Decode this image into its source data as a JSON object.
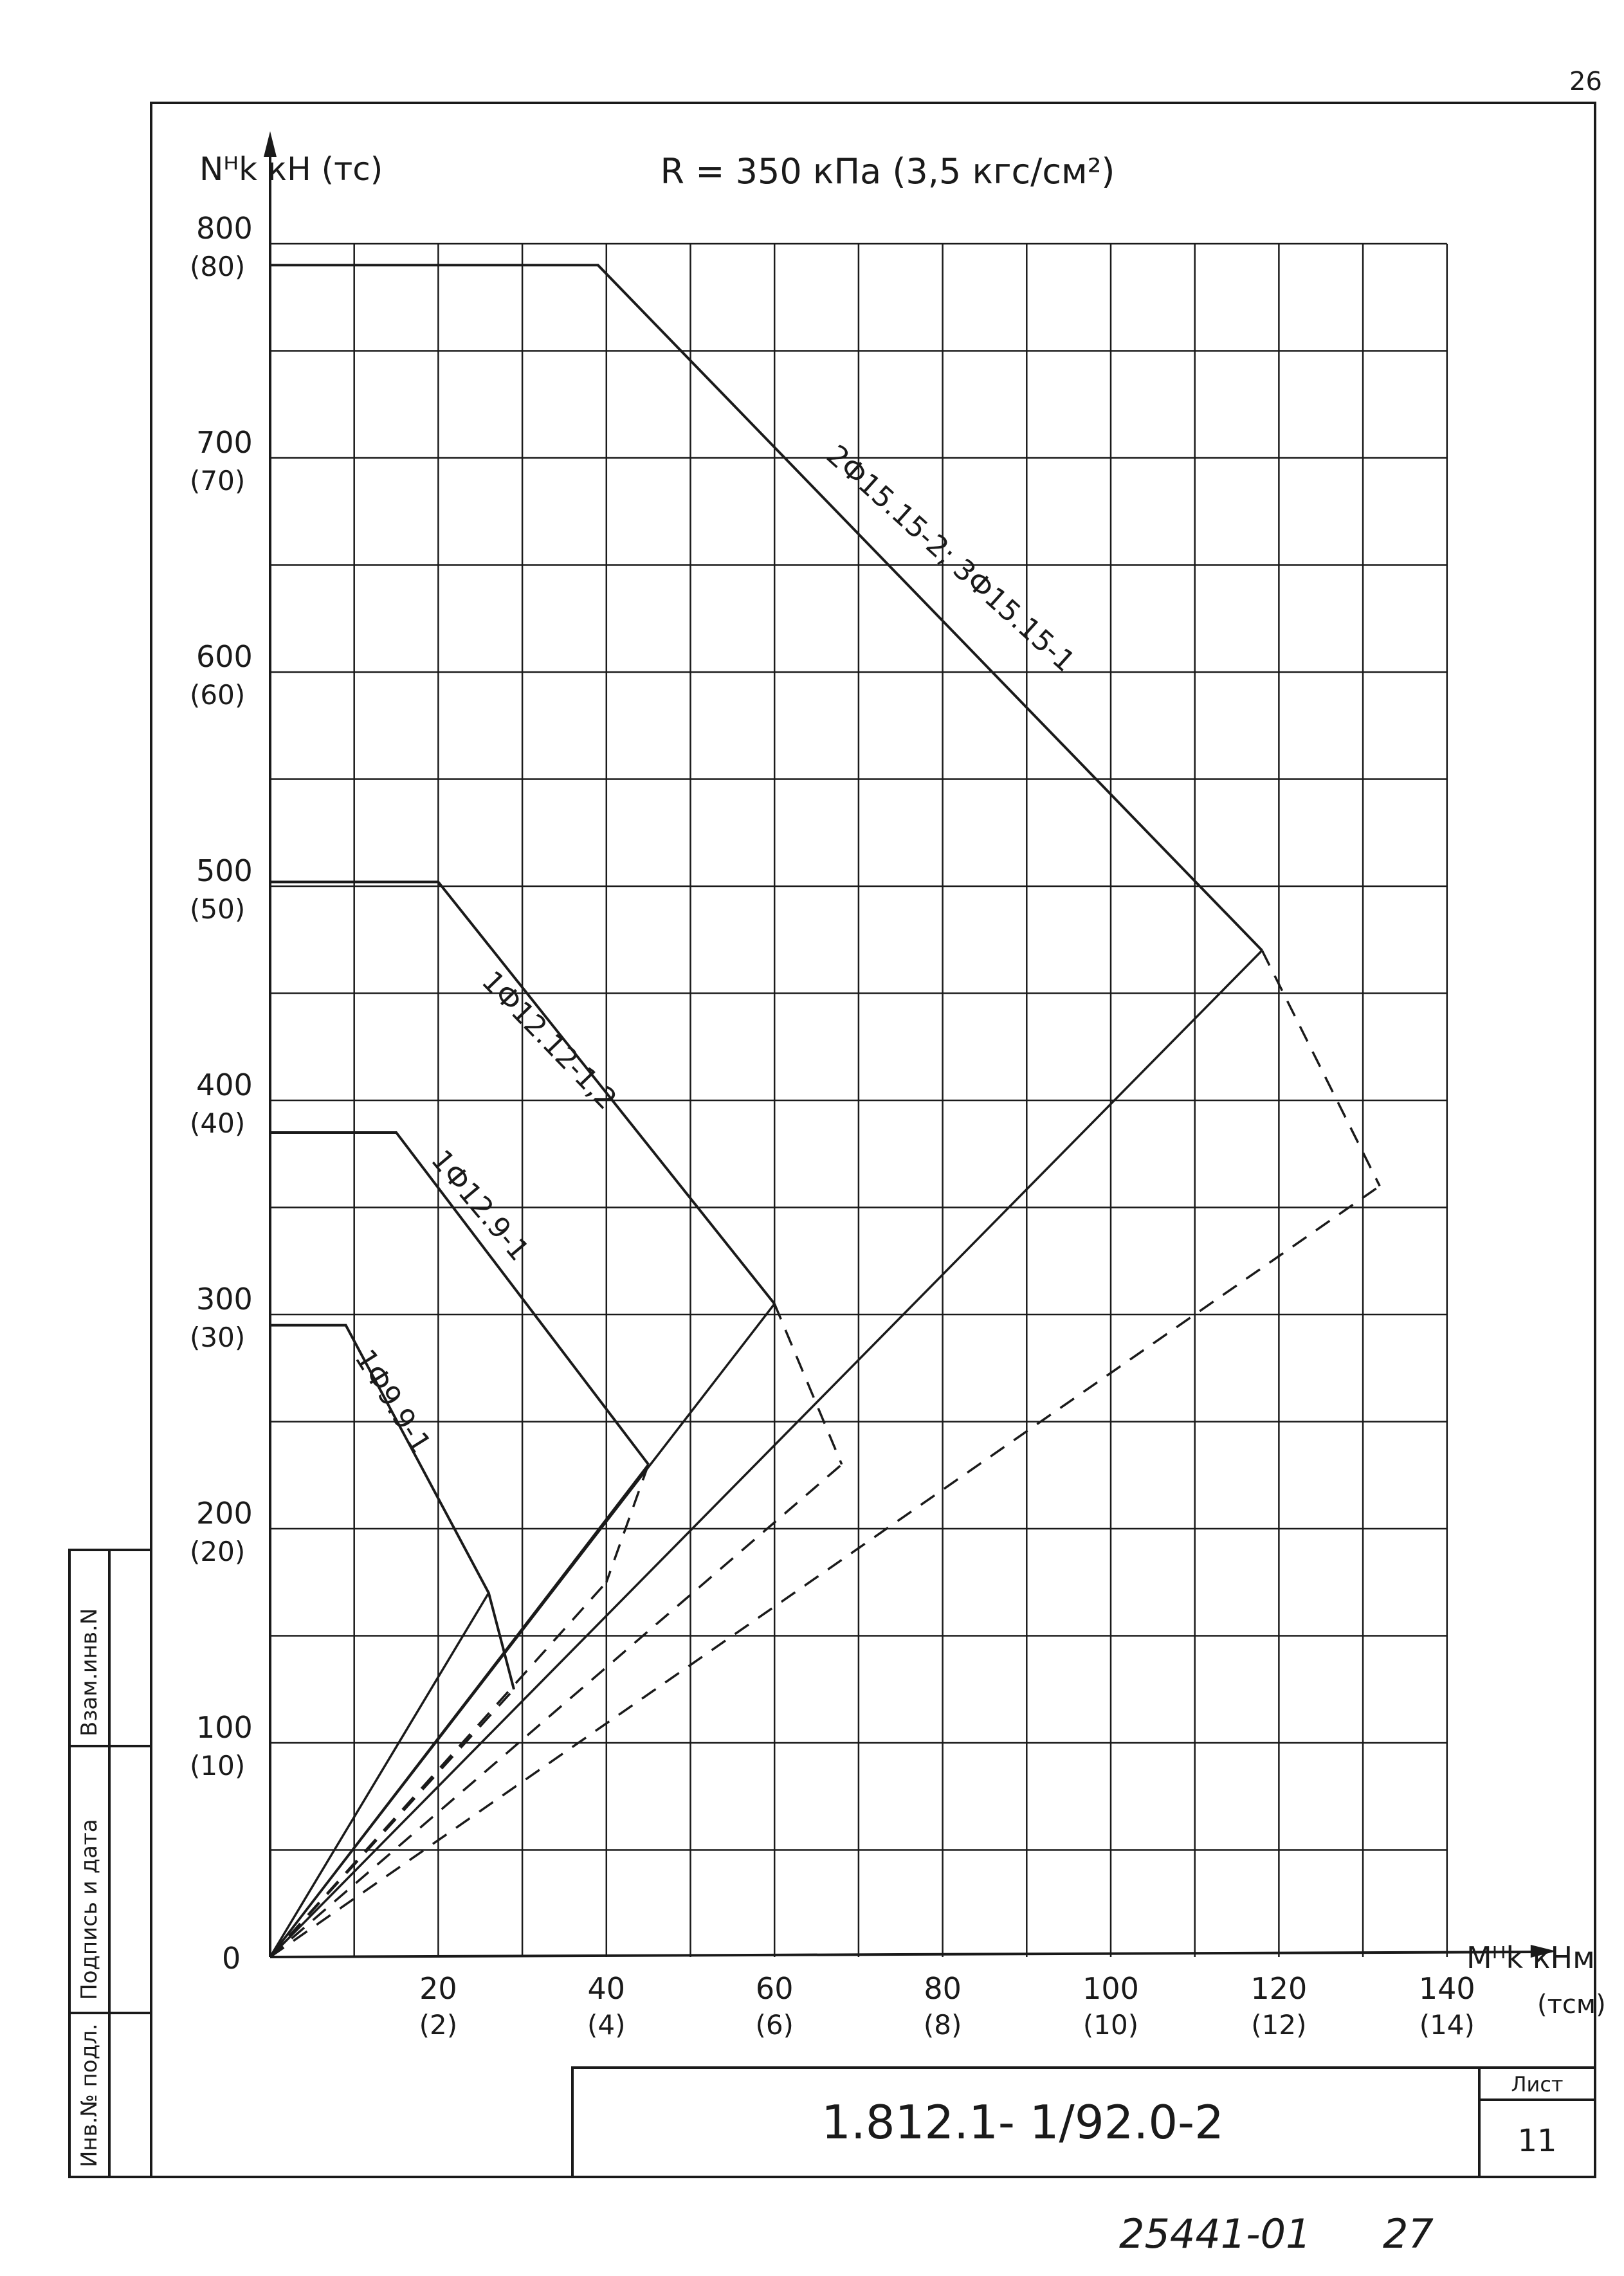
{
  "page_number": "26",
  "chart_data": {
    "type": "line",
    "title": "R = 350 кПа (3,5 кгс/см²)",
    "ylabel": "Nᴴk кН (тс)",
    "xlabel": "Mᴴk кНм",
    "x_unit_alt": "(тсм)",
    "xlim": [
      0,
      140
    ],
    "ylim": [
      0,
      800
    ],
    "grid": true,
    "x_ticks": [
      {
        "value": 20,
        "label": "20",
        "alt": "(2)"
      },
      {
        "value": 40,
        "label": "40",
        "alt": "(4)"
      },
      {
        "value": 60,
        "label": "60",
        "alt": "(6)"
      },
      {
        "value": 80,
        "label": "80",
        "alt": "(8)"
      },
      {
        "value": 100,
        "label": "100",
        "alt": "(10)"
      },
      {
        "value": 120,
        "label": "120",
        "alt": "(12)"
      },
      {
        "value": 140,
        "label": "140",
        "alt": "(14)"
      }
    ],
    "y_ticks": [
      {
        "value": 0,
        "label": "0",
        "alt": ""
      },
      {
        "value": 100,
        "label": "100",
        "alt": "(10)"
      },
      {
        "value": 200,
        "label": "200",
        "alt": "(20)"
      },
      {
        "value": 300,
        "label": "300",
        "alt": "(30)"
      },
      {
        "value": 400,
        "label": "400",
        "alt": "(40)"
      },
      {
        "value": 500,
        "label": "500",
        "alt": "(50)"
      },
      {
        "value": 600,
        "label": "600",
        "alt": "(60)"
      },
      {
        "value": 700,
        "label": "700",
        "alt": "(70)"
      },
      {
        "value": 800,
        "label": "800",
        "alt": "(80)"
      }
    ],
    "series": [
      {
        "name": "1Ф9.9-1",
        "style": "solid",
        "x": [
          0,
          9,
          26,
          29
        ],
        "y": [
          295,
          295,
          170,
          125
        ]
      },
      {
        "name": "1Ф12.9-1",
        "style": "solid",
        "x": [
          0,
          15,
          45,
          45
        ],
        "y": [
          385,
          385,
          230,
          230
        ]
      },
      {
        "name": "1Ф12.12-1,2",
        "style": "solid",
        "x": [
          0,
          20,
          60
        ],
        "y": [
          502,
          502,
          305
        ]
      },
      {
        "name": "2Ф15.15-2; 3Ф15.15-1",
        "style": "solid",
        "x": [
          0,
          39,
          118
        ],
        "y": [
          790,
          790,
          470
        ]
      }
    ],
    "dashed_segments": [
      {
        "x": [
          26,
          29
        ],
        "y": [
          170,
          125
        ]
      },
      {
        "x": [
          45,
          40
        ],
        "y": [
          230,
          175
        ]
      },
      {
        "x": [
          60,
          68
        ],
        "y": [
          305,
          230
        ]
      },
      {
        "x": [
          118,
          132
        ],
        "y": [
          470,
          360
        ]
      }
    ],
    "rays_solid": [
      {
        "x": [
          0,
          26
        ],
        "y": [
          0,
          170
        ]
      },
      {
        "x": [
          0,
          45
        ],
        "y": [
          0,
          230
        ]
      },
      {
        "x": [
          0,
          60
        ],
        "y": [
          0,
          305
        ]
      },
      {
        "x": [
          0,
          118
        ],
        "y": [
          0,
          470
        ]
      }
    ],
    "rays_dashed": [
      {
        "x": [
          0,
          29
        ],
        "y": [
          0,
          125
        ]
      },
      {
        "x": [
          0,
          40
        ],
        "y": [
          0,
          175
        ]
      },
      {
        "x": [
          0,
          68
        ],
        "y": [
          0,
          230
        ]
      },
      {
        "x": [
          0,
          132
        ],
        "y": [
          0,
          360
        ]
      }
    ]
  },
  "side_stamp": {
    "inv_podl": "Инв.№ подл.",
    "podpis_data": "Подпись и дата",
    "vzam_inv": "Взам.инв.N"
  },
  "title_block": {
    "code": "1.812.1- 1/92.0-2",
    "sheet_label": "Лист",
    "sheet_number": "11"
  },
  "footer": {
    "archive": "25441-01",
    "page": "27"
  }
}
